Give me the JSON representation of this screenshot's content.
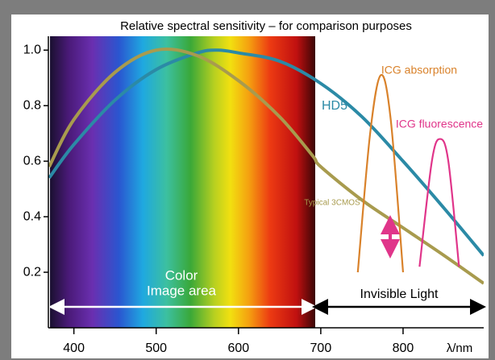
{
  "chart_data": {
    "type": "line",
    "title": "Relative spectral sensitivity – for comparison purposes",
    "x_label": "λ/nm",
    "xlim": [
      369,
      898
    ],
    "ylim": [
      0,
      1.05
    ],
    "xticks": [
      400,
      500,
      600,
      700,
      800
    ],
    "yticks": [
      0.2,
      0.4,
      0.6,
      0.8,
      {
        "value": 1,
        "label": "1.0"
      }
    ],
    "series": [
      {
        "name": "HD5",
        "color": "#2b8aa6",
        "x": [
          370,
          400,
          450,
          500,
          550,
          575,
          600,
          650,
          700,
          750,
          800,
          850,
          898
        ],
        "values": [
          0.54,
          0.66,
          0.82,
          0.93,
          0.99,
          1.0,
          0.99,
          0.96,
          0.88,
          0.76,
          0.6,
          0.43,
          0.26
        ]
      },
      {
        "name": "Typical 3CMOS",
        "color": "#a89b4e",
        "x": [
          370,
          400,
          450,
          500,
          550,
          600,
          650,
          690,
          700,
          750,
          800,
          850,
          898
        ],
        "values": [
          0.58,
          0.75,
          0.92,
          1.0,
          0.98,
          0.89,
          0.76,
          0.62,
          0.58,
          0.46,
          0.36,
          0.26,
          0.16
        ]
      },
      {
        "name": "ICG absorption",
        "color": "#d9822b",
        "x": [
          745,
          760,
          773,
          785,
          800
        ],
        "values": [
          0.2,
          0.7,
          0.91,
          0.75,
          0.2
        ]
      },
      {
        "name": "ICG fluorescence",
        "color": "#e0358a",
        "x": [
          820,
          835,
          845,
          855,
          868
        ],
        "values": [
          0.22,
          0.6,
          0.68,
          0.6,
          0.22
        ]
      }
    ],
    "annotations": [
      "Color",
      "Image area",
      "Invisible Light"
    ]
  }
}
